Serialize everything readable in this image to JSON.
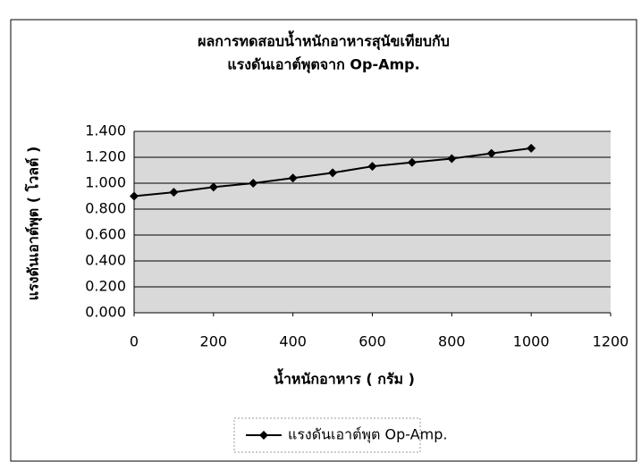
{
  "chart_data": {
    "type": "line",
    "title": [
      "ผลการทดสอบน้ำหนักอาหารสุนัขเทียบกับ",
      "แรงดันเอาต์พุตจาก Op-Amp."
    ],
    "x_label": "น้ำหนักอาหาร ( กรัม )",
    "y_label": "แรงดันเอาต์พุต ( โวลต์ )",
    "x": [
      0,
      100,
      200,
      300,
      400,
      500,
      600,
      700,
      800,
      900,
      1000
    ],
    "series": [
      {
        "name": "แรงดันเอาต์พุต Op-Amp.",
        "color": "#000000",
        "values": [
          0.9,
          0.93,
          0.97,
          1.0,
          1.04,
          1.08,
          1.13,
          1.16,
          1.19,
          1.23,
          1.27
        ]
      }
    ],
    "xlim": [
      0,
      1200
    ],
    "xticks": [
      0,
      200,
      400,
      600,
      800,
      1000,
      1200
    ],
    "ylim": [
      0,
      1.4
    ],
    "yticks": [
      {
        "value": 0,
        "label": "0.000"
      },
      {
        "value": 0.2,
        "label": "0.200"
      },
      {
        "value": 0.4,
        "label": "0.400"
      },
      {
        "value": 0.6,
        "label": "0.600"
      },
      {
        "value": 0.8,
        "label": "0.800"
      },
      {
        "value": 1,
        "label": "1.000"
      },
      {
        "value": 1.2,
        "label": "1.200"
      },
      {
        "value": 1.4,
        "label": "1.400"
      }
    ],
    "grid": true,
    "legend": "bottom"
  }
}
